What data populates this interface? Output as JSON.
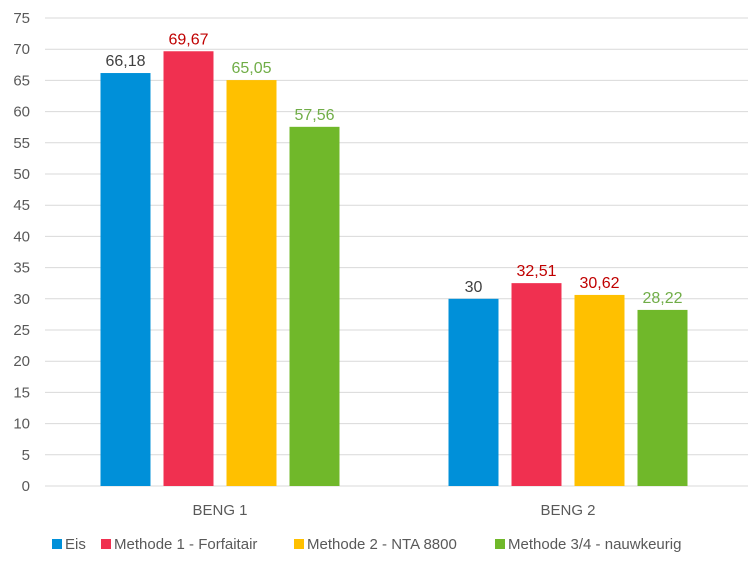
{
  "chart_data": {
    "type": "bar",
    "title": "",
    "xlabel": "",
    "ylabel": "",
    "ylim": [
      0,
      75
    ],
    "ytick_step": 5,
    "grid": true,
    "legend_position": "bottom",
    "categories": [
      "BENG 1",
      "BENG 2"
    ],
    "series": [
      {
        "name": "Eis",
        "color": "#0090d9",
        "values": [
          66.18,
          30
        ],
        "labels": [
          "66,18",
          "30"
        ],
        "label_colors": [
          "#404040",
          "#404040"
        ]
      },
      {
        "name": "Methode 1 - Forfaitair",
        "color": "#f03050",
        "values": [
          69.67,
          32.51
        ],
        "labels": [
          "69,67",
          "32,51"
        ],
        "label_colors": [
          "#c00000",
          "#c00000"
        ]
      },
      {
        "name": "Methode 2 - NTA 8800",
        "color": "#ffc000",
        "values": [
          65.05,
          30.62
        ],
        "labels": [
          "65,05",
          "30,62"
        ],
        "label_colors": [
          "#70ad47",
          "#c00000"
        ]
      },
      {
        "name": "Methode 3/4 - nauwkeurig",
        "color": "#70b82a",
        "values": [
          57.56,
          28.22
        ],
        "labels": [
          "57,56",
          "28,22"
        ],
        "label_colors": [
          "#70ad47",
          "#70ad47"
        ]
      }
    ]
  }
}
